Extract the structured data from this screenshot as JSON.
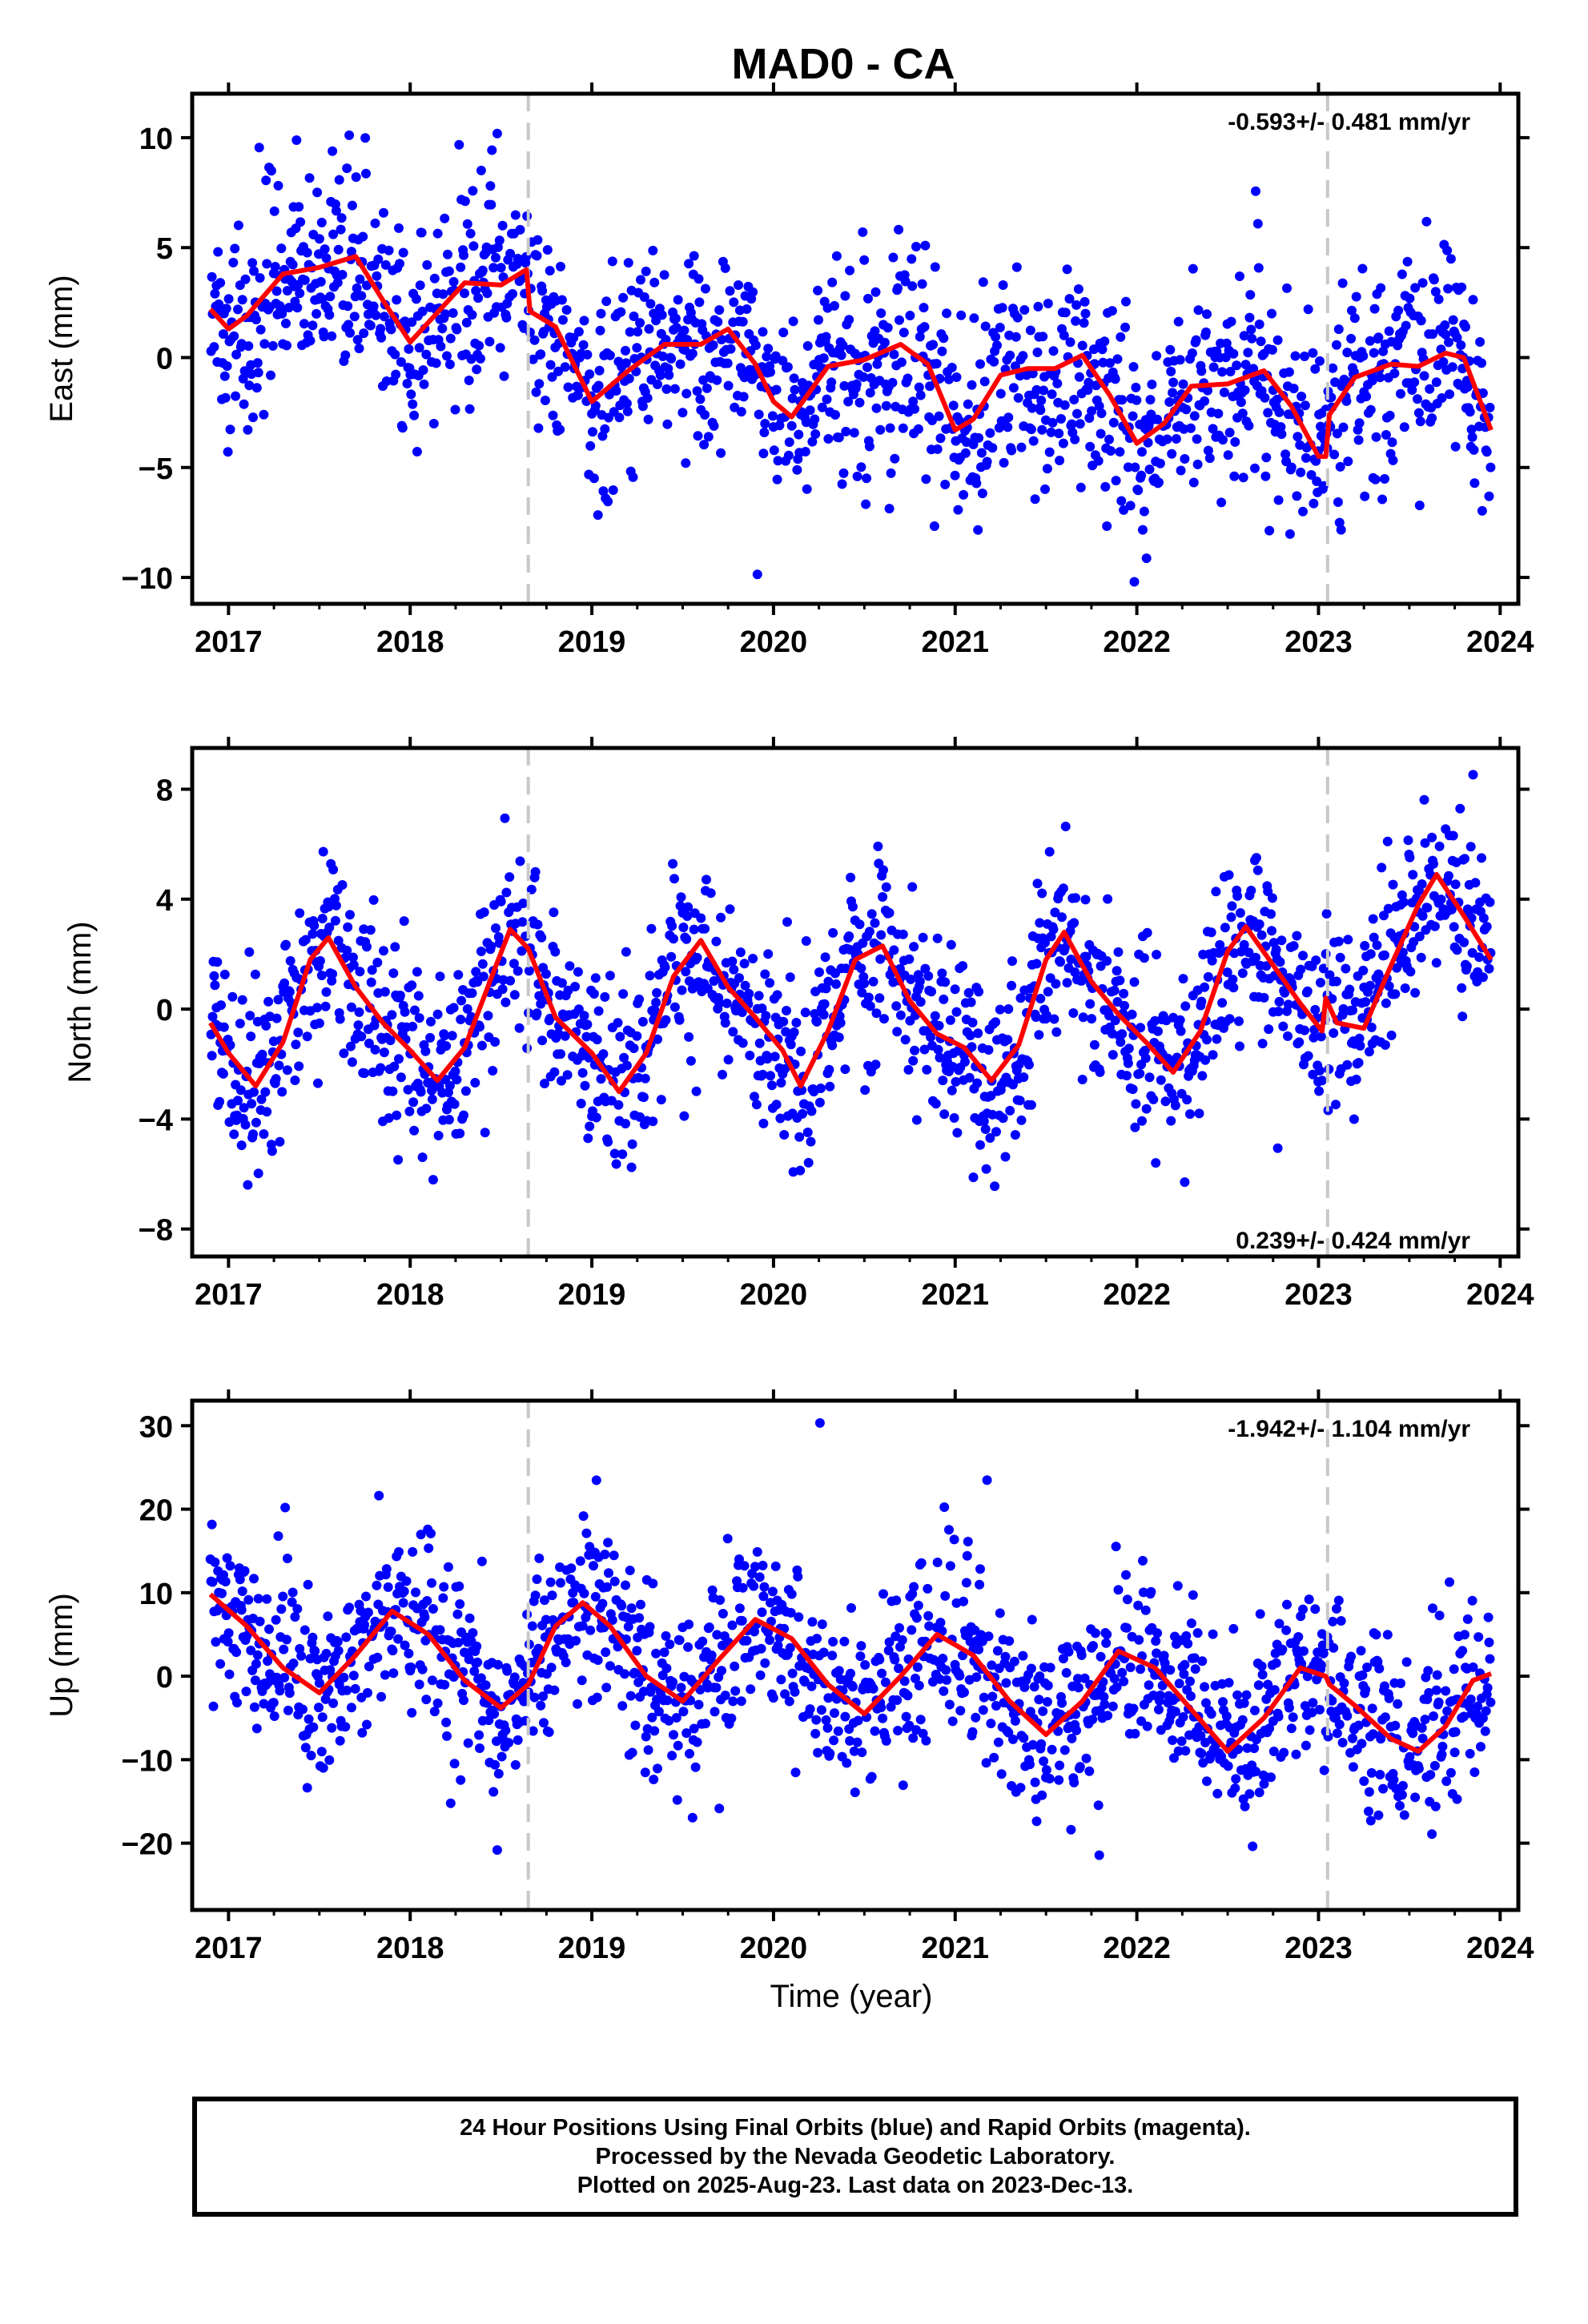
{
  "title": "MAD0 - CA",
  "xlabel": "Time (year)",
  "footer": {
    "line1": "24 Hour Positions Using Final Orbits (blue) and Rapid Orbits (magenta).",
    "line2": "Processed by the Nevada Geodetic Laboratory.",
    "line3": "Plotted on 2025-Aug-23. Last data on 2023-Dec-13."
  },
  "colors": {
    "points": "#0000ff",
    "fit": "#ff0000",
    "dashed": "#c8c8c8",
    "axis": "#000000"
  },
  "chart_data": [
    {
      "type": "scatter",
      "panel": "East",
      "ylabel": "East (mm)",
      "rate_label": "-0.593+/- 0.481 mm/yr",
      "xlim": [
        2016.8,
        2024.1
      ],
      "ylim": [
        -11.2,
        12
      ],
      "yticks": [
        10,
        5,
        0,
        -5,
        -10
      ],
      "yticklabels": [
        "10",
        "5",
        "0",
        "−5",
        "−10"
      ],
      "xticks": [
        2017,
        2018,
        2019,
        2020,
        2021,
        2022,
        2023,
        2024
      ],
      "xticklabels": [
        "2017",
        "2018",
        "2019",
        "2020",
        "2021",
        "2022",
        "2023",
        "2024"
      ],
      "breaks": [
        2018.65,
        2023.05
      ],
      "fit": {
        "x": [
          2016.9,
          2017.0,
          2017.1,
          2017.3,
          2017.5,
          2017.7,
          2017.85,
          2018.0,
          2018.1,
          2018.3,
          2018.5,
          2018.64,
          2018.66,
          2018.8,
          2019.0,
          2019.2,
          2019.4,
          2019.6,
          2019.75,
          2019.9,
          2020.0,
          2020.1,
          2020.3,
          2020.5,
          2020.7,
          2020.85,
          2021.0,
          2021.1,
          2021.25,
          2021.4,
          2021.55,
          2021.7,
          2021.85,
          2022.0,
          2022.15,
          2022.3,
          2022.5,
          2022.7,
          2022.85,
          2023.0,
          2023.04,
          2023.06,
          2023.2,
          2023.4,
          2023.55,
          2023.7,
          2023.8,
          2023.95
        ],
        "y": [
          2.2,
          1.3,
          1.9,
          3.8,
          4.1,
          4.6,
          2.6,
          0.7,
          1.6,
          3.4,
          3.3,
          4.0,
          2.1,
          1.4,
          -2.0,
          -0.6,
          0.6,
          0.6,
          1.3,
          -0.3,
          -2.0,
          -2.7,
          -0.4,
          -0.1,
          0.6,
          -0.3,
          -3.3,
          -2.8,
          -0.8,
          -0.5,
          -0.5,
          0.1,
          -1.7,
          -3.9,
          -3.0,
          -1.3,
          -1.2,
          -0.6,
          -2.2,
          -4.5,
          -4.5,
          -2.6,
          -0.9,
          -0.3,
          -0.4,
          0.2,
          0.0,
          -3.3
        ]
      },
      "noise_sd": 2.3
    },
    {
      "type": "scatter",
      "panel": "North",
      "ylabel": "North (mm)",
      "rate_label": "0.239+/- 0.424 mm/yr",
      "xlim": [
        2016.8,
        2024.1
      ],
      "ylim": [
        -9,
        9.5
      ],
      "yticks": [
        8,
        4,
        0,
        -4,
        -8
      ],
      "yticklabels": [
        "8",
        "4",
        "0",
        "−4",
        "−8"
      ],
      "xticks": [
        2017,
        2018,
        2019,
        2020,
        2021,
        2022,
        2023,
        2024
      ],
      "xticklabels": [
        "2017",
        "2018",
        "2019",
        "2020",
        "2021",
        "2022",
        "2023",
        "2024"
      ],
      "breaks": [
        2018.65,
        2023.05
      ],
      "fit": {
        "x": [
          2016.9,
          2017.0,
          2017.15,
          2017.3,
          2017.45,
          2017.55,
          2017.7,
          2017.85,
          2018.0,
          2018.15,
          2018.3,
          2018.45,
          2018.55,
          2018.65,
          2018.8,
          2019.0,
          2019.15,
          2019.3,
          2019.45,
          2019.6,
          2019.75,
          2019.9,
          2020.05,
          2020.15,
          2020.3,
          2020.45,
          2020.6,
          2020.75,
          2020.9,
          2021.05,
          2021.2,
          2021.35,
          2021.5,
          2021.6,
          2021.75,
          2021.9,
          2022.05,
          2022.2,
          2022.35,
          2022.5,
          2022.6,
          2022.75,
          2022.9,
          2023.02,
          2023.04,
          2023.1,
          2023.25,
          2023.4,
          2023.55,
          2023.65,
          2023.8,
          2023.95
        ],
        "y": [
          -0.5,
          -1.6,
          -2.8,
          -1.2,
          1.8,
          2.6,
          0.8,
          -0.5,
          -1.5,
          -2.6,
          -1.4,
          1.2,
          2.9,
          2.2,
          -0.3,
          -1.6,
          -3.0,
          -1.6,
          1.2,
          2.5,
          0.8,
          -0.3,
          -1.5,
          -2.8,
          -0.8,
          1.8,
          2.3,
          0.3,
          -0.9,
          -1.4,
          -2.6,
          -1.3,
          1.8,
          2.8,
          1.0,
          -0.2,
          -1.2,
          -2.3,
          -0.8,
          2.1,
          3.0,
          1.6,
          0.2,
          -0.8,
          0.4,
          -0.5,
          -0.7,
          1.6,
          3.8,
          4.9,
          3.4,
          1.8
        ]
      },
      "noise_sd": 1.7
    },
    {
      "type": "scatter",
      "panel": "Up",
      "ylabel": "Up (mm)",
      "rate_label": "-1.942+/- 1.104 mm/yr",
      "xlim": [
        2016.8,
        2024.1
      ],
      "ylim": [
        -28,
        33
      ],
      "yticks": [
        30,
        20,
        10,
        0,
        -10,
        -20
      ],
      "yticklabels": [
        "30",
        "20",
        "10",
        "0",
        "−10",
        "−20"
      ],
      "xticks": [
        2017,
        2018,
        2019,
        2020,
        2021,
        2022,
        2023,
        2024
      ],
      "xticklabels": [
        "2017",
        "2018",
        "2019",
        "2020",
        "2021",
        "2022",
        "2023",
        "2024"
      ],
      "breaks": [
        2018.65,
        2023.05
      ],
      "fit": {
        "x": [
          2016.9,
          2017.1,
          2017.3,
          2017.5,
          2017.7,
          2017.9,
          2018.1,
          2018.3,
          2018.5,
          2018.65,
          2018.8,
          2018.95,
          2019.1,
          2019.3,
          2019.5,
          2019.7,
          2019.9,
          2020.1,
          2020.3,
          2020.5,
          2020.7,
          2020.9,
          2021.1,
          2021.3,
          2021.5,
          2021.7,
          2021.9,
          2022.1,
          2022.3,
          2022.5,
          2022.7,
          2022.9,
          2023.04,
          2023.06,
          2023.2,
          2023.4,
          2023.55,
          2023.7,
          2023.85,
          2023.95
        ],
        "y": [
          9.8,
          6.0,
          1.0,
          -2.0,
          2.5,
          7.8,
          5.0,
          -0.5,
          -3.8,
          -1.0,
          6.0,
          8.8,
          6.0,
          0.0,
          -3.0,
          2.0,
          6.8,
          4.5,
          -1.0,
          -4.5,
          0.0,
          5.0,
          2.5,
          -3.0,
          -7.0,
          -3.0,
          3.0,
          1.0,
          -4.0,
          -9.0,
          -5.0,
          1.0,
          0.0,
          -1.0,
          -3.5,
          -7.5,
          -9.0,
          -6.0,
          -0.5,
          0.3
        ]
      },
      "noise_sd": 5.5
    }
  ]
}
